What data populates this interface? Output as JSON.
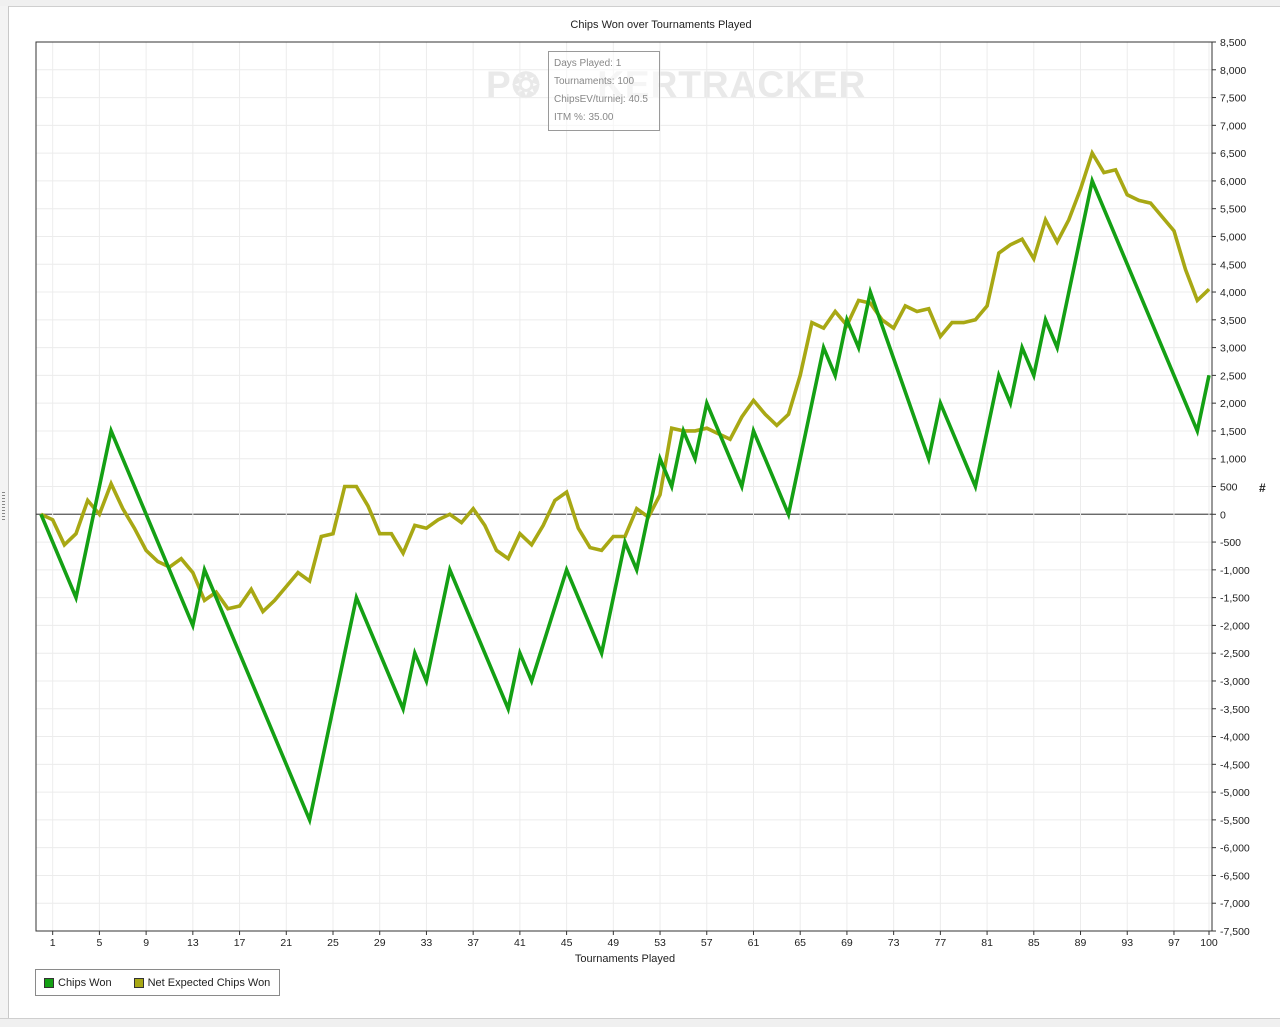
{
  "chart_data": {
    "type": "line",
    "title": "Chips Won over Tournaments Played",
    "xlabel": "Tournaments Played",
    "ylabel": "#",
    "xlim": [
      0,
      100
    ],
    "ylim": [
      -7500,
      8500
    ],
    "x_ticks": [
      1,
      5,
      9,
      13,
      17,
      21,
      25,
      29,
      33,
      37,
      41,
      45,
      49,
      53,
      57,
      61,
      65,
      69,
      73,
      77,
      81,
      85,
      89,
      93,
      97,
      100
    ],
    "y_ticks": [
      8500,
      8000,
      7500,
      7000,
      6500,
      6000,
      5500,
      5000,
      4500,
      4000,
      3500,
      3000,
      2500,
      2000,
      1500,
      1000,
      500,
      0,
      -500,
      -1000,
      -1500,
      -2000,
      -2500,
      -3000,
      -3500,
      -4000,
      -4500,
      -5000,
      -5500,
      -6000,
      -6500,
      -7000,
      -7500
    ],
    "y_tick_labels": [
      "8,500",
      "8,000",
      "7,500",
      "7,000",
      "6,500",
      "6,000",
      "5,500",
      "5,000",
      "4,500",
      "4,000",
      "3,500",
      "3,000",
      "2,500",
      "2,000",
      "1,500",
      "1,000",
      "500",
      "0",
      "-500",
      "-1,000",
      "-1,500",
      "-2,000",
      "-2,500",
      "-3,000",
      "-3,500",
      "-4,000",
      "-4,500",
      "-5,000",
      "-5,500",
      "-6,000",
      "-6,500",
      "-7,000",
      "-7,500"
    ],
    "grid": true,
    "legend_position": "bottom-left",
    "series": [
      {
        "name": "Chips Won",
        "color": "#14a014",
        "points": [
          [
            0,
            0
          ],
          [
            3,
            -1500
          ],
          [
            6,
            1500
          ],
          [
            13,
            -2000
          ],
          [
            14,
            -1000
          ],
          [
            23,
            -5500
          ],
          [
            27,
            -1500
          ],
          [
            31,
            -3500
          ],
          [
            32,
            -2500
          ],
          [
            33,
            -3000
          ],
          [
            35,
            -1000
          ],
          [
            40,
            -3500
          ],
          [
            41,
            -2500
          ],
          [
            42,
            -3000
          ],
          [
            45,
            -1000
          ],
          [
            48,
            -2500
          ],
          [
            49,
            -1500
          ],
          [
            50,
            -500
          ],
          [
            51,
            -1000
          ],
          [
            52,
            0
          ],
          [
            53,
            1000
          ],
          [
            54,
            500
          ],
          [
            55,
            1500
          ],
          [
            56,
            1000
          ],
          [
            57,
            2000
          ],
          [
            60,
            500
          ],
          [
            61,
            1500
          ],
          [
            64,
            0
          ],
          [
            67,
            3000
          ],
          [
            68,
            2500
          ],
          [
            69,
            3500
          ],
          [
            70,
            3000
          ],
          [
            71,
            4000
          ],
          [
            76,
            1000
          ],
          [
            77,
            2000
          ],
          [
            80,
            500
          ],
          [
            82,
            2500
          ],
          [
            83,
            2000
          ],
          [
            84,
            3000
          ],
          [
            85,
            2500
          ],
          [
            86,
            3500
          ],
          [
            87,
            3000
          ],
          [
            90,
            6000
          ],
          [
            99,
            1500
          ],
          [
            100,
            2500
          ]
        ]
      },
      {
        "name": "Net Expected Chips Won",
        "color": "#a8a814",
        "points": [
          [
            0,
            0
          ],
          [
            1,
            -100
          ],
          [
            2,
            -550
          ],
          [
            3,
            -350
          ],
          [
            4,
            250
          ],
          [
            5,
            0
          ],
          [
            6,
            550
          ],
          [
            7,
            100
          ],
          [
            8,
            -250
          ],
          [
            9,
            -650
          ],
          [
            10,
            -850
          ],
          [
            11,
            -950
          ],
          [
            12,
            -800
          ],
          [
            13,
            -1050
          ],
          [
            14,
            -1550
          ],
          [
            15,
            -1400
          ],
          [
            16,
            -1700
          ],
          [
            17,
            -1650
          ],
          [
            18,
            -1350
          ],
          [
            19,
            -1750
          ],
          [
            20,
            -1550
          ],
          [
            21,
            -1300
          ],
          [
            22,
            -1050
          ],
          [
            23,
            -1200
          ],
          [
            24,
            -400
          ],
          [
            25,
            -350
          ],
          [
            26,
            500
          ],
          [
            27,
            500
          ],
          [
            28,
            150
          ],
          [
            29,
            -350
          ],
          [
            30,
            -350
          ],
          [
            31,
            -700
          ],
          [
            32,
            -200
          ],
          [
            33,
            -250
          ],
          [
            34,
            -100
          ],
          [
            35,
            0
          ],
          [
            36,
            -150
          ],
          [
            37,
            100
          ],
          [
            38,
            -200
          ],
          [
            39,
            -650
          ],
          [
            40,
            -800
          ],
          [
            41,
            -350
          ],
          [
            42,
            -550
          ],
          [
            43,
            -200
          ],
          [
            44,
            250
          ],
          [
            45,
            400
          ],
          [
            46,
            -250
          ],
          [
            47,
            -600
          ],
          [
            48,
            -650
          ],
          [
            49,
            -400
          ],
          [
            50,
            -400
          ],
          [
            51,
            100
          ],
          [
            52,
            -50
          ],
          [
            53,
            350
          ],
          [
            54,
            1550
          ],
          [
            55,
            1500
          ],
          [
            56,
            1500
          ],
          [
            57,
            1550
          ],
          [
            58,
            1450
          ],
          [
            59,
            1350
          ],
          [
            60,
            1750
          ],
          [
            61,
            2050
          ],
          [
            62,
            1800
          ],
          [
            63,
            1600
          ],
          [
            64,
            1800
          ],
          [
            65,
            2500
          ],
          [
            66,
            3450
          ],
          [
            67,
            3350
          ],
          [
            68,
            3650
          ],
          [
            69,
            3400
          ],
          [
            70,
            3850
          ],
          [
            71,
            3800
          ],
          [
            72,
            3500
          ],
          [
            73,
            3350
          ],
          [
            74,
            3750
          ],
          [
            75,
            3650
          ],
          [
            76,
            3700
          ],
          [
            77,
            3200
          ],
          [
            78,
            3450
          ],
          [
            79,
            3450
          ],
          [
            80,
            3500
          ],
          [
            81,
            3750
          ],
          [
            82,
            4700
          ],
          [
            83,
            4850
          ],
          [
            84,
            4950
          ],
          [
            85,
            4600
          ],
          [
            86,
            5300
          ],
          [
            87,
            4900
          ],
          [
            88,
            5300
          ],
          [
            89,
            5850
          ],
          [
            90,
            6500
          ],
          [
            91,
            6150
          ],
          [
            92,
            6200
          ],
          [
            93,
            5750
          ],
          [
            94,
            5650
          ],
          [
            95,
            5600
          ],
          [
            96,
            5350
          ],
          [
            97,
            5100
          ],
          [
            98,
            4400
          ],
          [
            99,
            3850
          ],
          [
            100,
            4050
          ]
        ]
      }
    ]
  },
  "tooltip": {
    "lines": [
      "Days Played: 1",
      "Tournaments: 100",
      "ChipsEV/turniej: 40.5",
      "ITM %: 35.00"
    ]
  },
  "watermark": "POKERTRACKER",
  "legend": {
    "items": [
      {
        "label": "Chips Won",
        "color": "#14a014"
      },
      {
        "label": "Net Expected Chips Won",
        "color": "#a8a814"
      }
    ]
  }
}
